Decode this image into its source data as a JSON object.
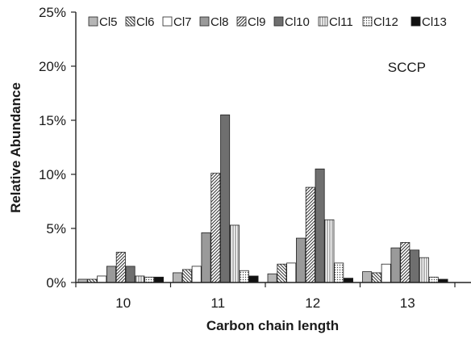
{
  "chart_data": {
    "type": "bar",
    "title": "",
    "annotation": "SCCP",
    "xlabel": "Carbon chain length",
    "ylabel": "Relative Abundance",
    "categories": [
      "10",
      "11",
      "12",
      "13"
    ],
    "ylim": [
      0,
      25
    ],
    "yticks": [
      "0%",
      "5%",
      "10%",
      "15%",
      "20%",
      "25%"
    ],
    "grid": false,
    "legend_position": "top",
    "series": [
      {
        "name": "Cl5",
        "values": [
          0.3,
          0.9,
          0.8,
          1.0
        ],
        "fill": "#b5b5b5",
        "pattern": "none"
      },
      {
        "name": "Cl6",
        "values": [
          0.3,
          1.2,
          1.7,
          0.9
        ],
        "fill": "#ffffff",
        "pattern": "backslash"
      },
      {
        "name": "Cl7",
        "values": [
          0.6,
          1.5,
          1.8,
          1.7
        ],
        "fill": "#ffffff",
        "pattern": "none"
      },
      {
        "name": "Cl8",
        "values": [
          1.5,
          4.6,
          4.1,
          3.2
        ],
        "fill": "#9a9a9a",
        "pattern": "none"
      },
      {
        "name": "Cl9",
        "values": [
          2.8,
          10.1,
          8.8,
          3.7
        ],
        "fill": "#ffffff",
        "pattern": "slash"
      },
      {
        "name": "Cl10",
        "values": [
          1.5,
          15.5,
          10.5,
          3.0
        ],
        "fill": "#6f6f6f",
        "pattern": "none"
      },
      {
        "name": "Cl11",
        "values": [
          0.6,
          5.3,
          5.8,
          2.3
        ],
        "fill": "#ffffff",
        "pattern": "vertical"
      },
      {
        "name": "Cl12",
        "values": [
          0.5,
          1.1,
          1.8,
          0.5
        ],
        "fill": "#ffffff",
        "pattern": "dots"
      },
      {
        "name": "Cl13",
        "values": [
          0.5,
          0.6,
          0.4,
          0.3
        ],
        "fill": "#111111",
        "pattern": "none"
      }
    ]
  }
}
